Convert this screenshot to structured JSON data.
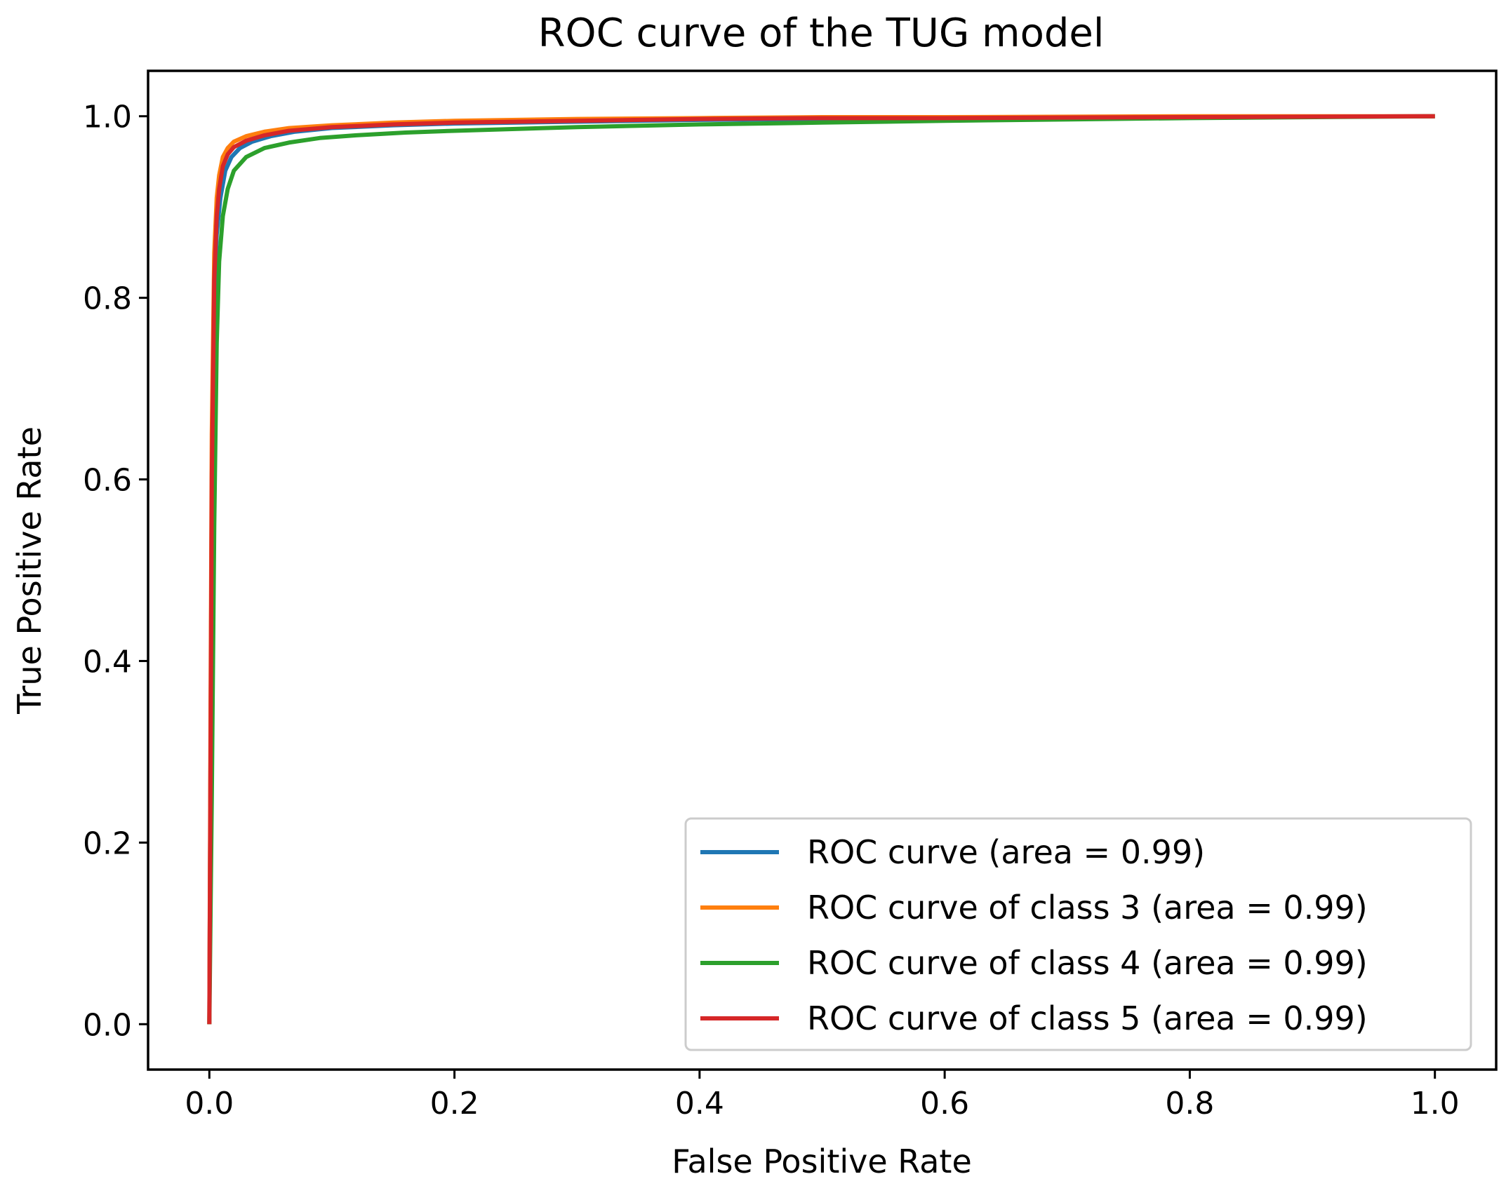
{
  "chart_data": {
    "type": "line",
    "title": "ROC curve of the TUG model",
    "xlabel": "False Positive Rate",
    "ylabel": "True Positive Rate",
    "xlim": [
      -0.05,
      1.05
    ],
    "ylim": [
      -0.05,
      1.05
    ],
    "xticks": [
      0.0,
      0.2,
      0.4,
      0.6,
      0.8,
      1.0
    ],
    "xtick_labels": [
      "0.0",
      "0.2",
      "0.4",
      "0.6",
      "0.8",
      "1.0"
    ],
    "yticks": [
      0.0,
      0.2,
      0.4,
      0.6,
      0.8,
      1.0
    ],
    "ytick_labels": [
      "0.0",
      "0.2",
      "0.4",
      "0.6",
      "0.8",
      "1.0"
    ],
    "grid": false,
    "legend_position": "lower-right",
    "series": [
      {
        "name": "ROC curve (area = 0.99)",
        "color": "#1f77b4",
        "x": [
          0.0,
          0.001,
          0.002,
          0.004,
          0.006,
          0.009,
          0.013,
          0.018,
          0.025,
          0.035,
          0.05,
          0.07,
          0.1,
          0.15,
          0.2,
          0.3,
          0.4,
          0.5,
          0.6,
          0.8,
          1.0
        ],
        "y": [
          0.0,
          0.3,
          0.6,
          0.8,
          0.87,
          0.91,
          0.94,
          0.955,
          0.965,
          0.972,
          0.978,
          0.983,
          0.987,
          0.99,
          0.992,
          0.994,
          0.996,
          0.997,
          0.998,
          0.999,
          1.0
        ]
      },
      {
        "name": "ROC curve of class 3 (area = 0.99)",
        "color": "#ff7f0e",
        "x": [
          0.0,
          0.001,
          0.002,
          0.004,
          0.006,
          0.008,
          0.011,
          0.015,
          0.02,
          0.03,
          0.045,
          0.065,
          0.1,
          0.15,
          0.2,
          0.3,
          0.4,
          0.5,
          0.6,
          0.8,
          1.0
        ],
        "y": [
          0.0,
          0.35,
          0.65,
          0.85,
          0.91,
          0.935,
          0.955,
          0.965,
          0.972,
          0.978,
          0.983,
          0.987,
          0.99,
          0.993,
          0.995,
          0.997,
          0.998,
          0.999,
          0.999,
          1.0,
          1.0
        ]
      },
      {
        "name": "ROC curve of class 4 (area = 0.99)",
        "color": "#2ca02c",
        "x": [
          0.0,
          0.002,
          0.004,
          0.006,
          0.008,
          0.011,
          0.015,
          0.02,
          0.03,
          0.045,
          0.065,
          0.09,
          0.12,
          0.16,
          0.2,
          0.3,
          0.4,
          0.5,
          0.6,
          0.8,
          1.0
        ],
        "y": [
          0.0,
          0.25,
          0.55,
          0.75,
          0.84,
          0.89,
          0.92,
          0.94,
          0.955,
          0.965,
          0.971,
          0.976,
          0.979,
          0.982,
          0.984,
          0.988,
          0.991,
          0.993,
          0.995,
          0.998,
          1.0
        ]
      },
      {
        "name": "ROC curve of class 5 (area = 0.99)",
        "color": "#d62728",
        "x": [
          0.0,
          0.001,
          0.002,
          0.004,
          0.006,
          0.008,
          0.011,
          0.015,
          0.02,
          0.03,
          0.045,
          0.065,
          0.1,
          0.15,
          0.2,
          0.3,
          0.4,
          0.5,
          0.6,
          0.8,
          1.0
        ],
        "y": [
          0.0,
          0.3,
          0.6,
          0.82,
          0.89,
          0.92,
          0.945,
          0.958,
          0.966,
          0.973,
          0.979,
          0.984,
          0.988,
          0.991,
          0.993,
          0.995,
          0.997,
          0.998,
          0.998,
          0.999,
          1.0
        ]
      }
    ]
  }
}
